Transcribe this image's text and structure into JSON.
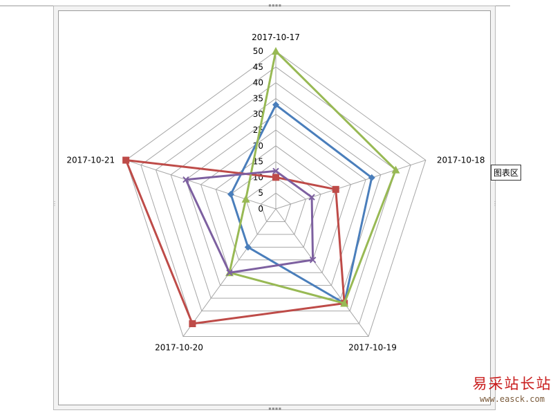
{
  "chart_data": {
    "type": "radar",
    "categories": [
      "2017-10-17",
      "2017-10-18",
      "2017-10-19",
      "2017-10-20",
      "2017-10-21"
    ],
    "rlim": [
      0,
      50
    ],
    "r_ticks": [
      0,
      5,
      10,
      15,
      20,
      25,
      30,
      35,
      40,
      45,
      50
    ],
    "grid": true,
    "series": [
      {
        "color": "#4a7ebb",
        "marker": "diamond",
        "values": [
          33,
          32,
          37,
          15,
          15
        ]
      },
      {
        "color": "#be4b48",
        "marker": "square",
        "values": [
          10,
          20,
          37,
          45,
          50
        ]
      },
      {
        "color": "#98b954",
        "marker": "triangle",
        "values": [
          50,
          40,
          37,
          25,
          10
        ]
      },
      {
        "color": "#7d60a0",
        "marker": "x",
        "values": [
          12,
          12,
          20,
          25,
          30
        ]
      }
    ]
  },
  "tooltip_text": "图表区",
  "watermark": {
    "title": "易采站长站",
    "url": "www.easck.com"
  },
  "handles": {
    "top": "▪▪▪▪",
    "bottom": "▪▪▪▪",
    "side": "⋮"
  }
}
